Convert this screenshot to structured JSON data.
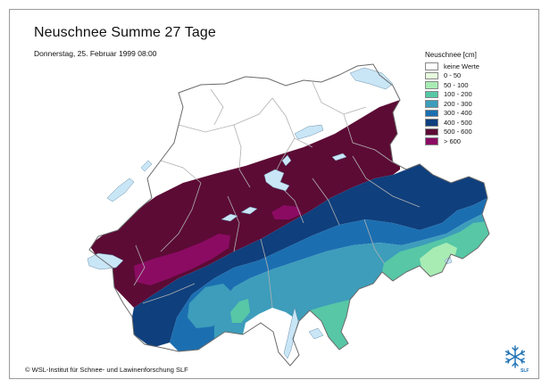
{
  "title": "Neuschnee Summe 27 Tage",
  "subtitle": "Donnerstag, 25. Februar 1999 08:00",
  "legend": {
    "title": "Neuschnee [cm]",
    "items": [
      {
        "label": "keine Werte",
        "color": "#ffffff"
      },
      {
        "label": "0 - 50",
        "color": "#e6fadd"
      },
      {
        "label": "50 - 100",
        "color": "#a8ecb4"
      },
      {
        "label": "100 - 200",
        "color": "#57c7a6"
      },
      {
        "label": "200 - 300",
        "color": "#3d9dbb"
      },
      {
        "label": "300 - 400",
        "color": "#1b6fb1"
      },
      {
        "label": "400 - 500",
        "color": "#0f3f7d"
      },
      {
        "label": "500 - 600",
        "color": "#5c0b35"
      },
      {
        "label": "> 600",
        "color": "#8b0b63"
      }
    ]
  },
  "copyright": "© WSL-Institut für Schnee- und Lawinenforschung SLF",
  "logo": {
    "text": "SLF",
    "icon": "snowflake-icon"
  },
  "colors": {
    "lake": "#c9e6f7",
    "border": "#6a6a6a",
    "canton": "#b0b0b0"
  }
}
